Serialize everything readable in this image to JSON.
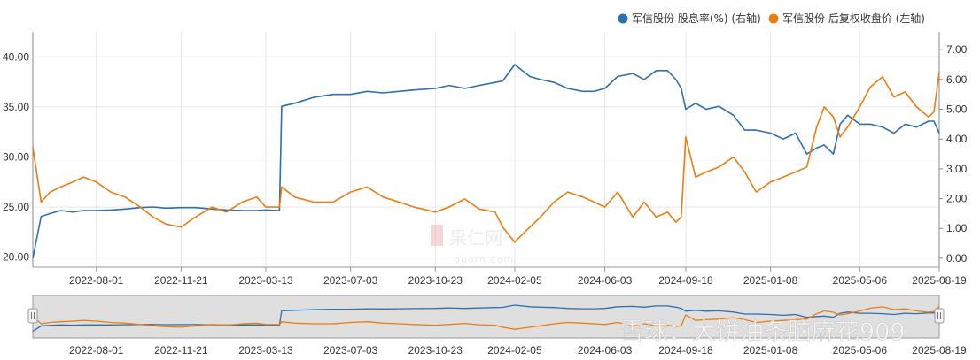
{
  "chart_data": {
    "type": "line",
    "x_dates": [
      "2022-05-09",
      "2022-05-20",
      "2022-06-01",
      "2022-06-15",
      "2022-07-01",
      "2022-07-15",
      "2022-08-01",
      "2022-08-20",
      "2022-09-08",
      "2022-09-28",
      "2022-10-15",
      "2022-11-01",
      "2022-11-21",
      "2022-12-10",
      "2023-01-01",
      "2023-01-20",
      "2023-02-10",
      "2023-03-01",
      "2023-03-13",
      "2023-03-31",
      "2023-04-03",
      "2023-04-20",
      "2023-05-15",
      "2023-06-10",
      "2023-07-03",
      "2023-07-25",
      "2023-08-15",
      "2023-09-05",
      "2023-09-25",
      "2023-10-23",
      "2023-11-10",
      "2023-12-01",
      "2023-12-20",
      "2024-01-10",
      "2024-01-20",
      "2024-02-05",
      "2024-02-25",
      "2024-03-10",
      "2024-03-28",
      "2024-04-15",
      "2024-05-05",
      "2024-05-20",
      "2024-06-03",
      "2024-06-20",
      "2024-07-10",
      "2024-07-25",
      "2024-08-10",
      "2024-08-25",
      "2024-09-05",
      "2024-09-12",
      "2024-09-18",
      "2024-10-01",
      "2024-10-15",
      "2024-11-01",
      "2024-11-20",
      "2024-12-05",
      "2024-12-20",
      "2025-01-08",
      "2025-01-25",
      "2025-02-10",
      "2025-02-25",
      "2025-03-10",
      "2025-03-20",
      "2025-04-01",
      "2025-04-10",
      "2025-04-20",
      "2025-05-06",
      "2025-05-20",
      "2025-06-05",
      "2025-06-20",
      "2025-07-05",
      "2025-07-20",
      "2025-08-05",
      "2025-08-12",
      "2025-08-19"
    ],
    "series": [
      {
        "name": "军信股份 股息率(%) (右轴)",
        "axis": "right",
        "color": "#2e6fad",
        "values": [
          0.0,
          1.4,
          1.5,
          1.6,
          1.55,
          1.6,
          1.6,
          1.62,
          1.65,
          1.7,
          1.72,
          1.68,
          1.7,
          1.7,
          1.65,
          1.62,
          1.6,
          1.6,
          1.62,
          1.6,
          5.1,
          5.2,
          5.4,
          5.5,
          5.5,
          5.6,
          5.55,
          5.6,
          5.65,
          5.7,
          5.8,
          5.7,
          5.8,
          5.9,
          5.95,
          6.5,
          6.1,
          6.0,
          5.9,
          5.7,
          5.6,
          5.6,
          5.7,
          6.1,
          6.2,
          6.0,
          6.3,
          6.3,
          6.0,
          5.7,
          5.0,
          5.2,
          5.0,
          5.1,
          4.8,
          4.3,
          4.3,
          4.2,
          4.0,
          4.2,
          3.5,
          3.7,
          3.8,
          3.5,
          4.5,
          4.8,
          4.5,
          4.5,
          4.4,
          4.2,
          4.5,
          4.4,
          4.6,
          4.6,
          4.2
        ]
      },
      {
        "name": "军信股份 后复权收盘价 (左轴)",
        "axis": "left",
        "color": "#ec7d11",
        "values": [
          31.0,
          25.5,
          26.5,
          27.0,
          27.5,
          28.0,
          27.5,
          26.5,
          26.0,
          25.0,
          24.0,
          23.3,
          23.0,
          24.0,
          25.0,
          24.5,
          25.5,
          26.0,
          25.0,
          25.0,
          27.0,
          26.0,
          25.5,
          25.5,
          26.5,
          27.0,
          26.0,
          25.5,
          25.0,
          24.5,
          25.0,
          25.8,
          24.8,
          24.5,
          23.0,
          21.5,
          23.0,
          24.0,
          25.5,
          26.5,
          26.0,
          25.5,
          25.0,
          26.5,
          24.0,
          25.5,
          24.0,
          24.5,
          23.5,
          24.0,
          32.0,
          28.0,
          28.5,
          29.0,
          30.0,
          28.5,
          26.5,
          27.5,
          28.0,
          28.5,
          29.0,
          33.0,
          35.0,
          34.0,
          32.0,
          33.0,
          35.0,
          37.0,
          38.0,
          36.0,
          36.5,
          35.0,
          34.0,
          34.5,
          38.5
        ]
      }
    ],
    "legend": [
      "军信股份 股息率(%) (右轴)",
      "军信股份 后复权收盘价 (左轴)"
    ],
    "legend_position": "top-right",
    "left_axis": {
      "ticks": [
        "20.00",
        "25.00",
        "30.00",
        "35.00",
        "40.00"
      ],
      "range": [
        19.0,
        42.5
      ]
    },
    "right_axis": {
      "ticks": [
        "0.00",
        "1.00",
        "2.00",
        "3.00",
        "4.00",
        "5.00",
        "6.00",
        "7.00"
      ],
      "range": [
        -0.3,
        7.6
      ]
    },
    "x_tick_labels": [
      "2022-08-01",
      "2022-11-21",
      "2023-03-13",
      "2023-07-03",
      "2023-10-23",
      "2024-02-05",
      "2024-06-03",
      "2024-09-18",
      "2025-01-08",
      "2025-05-06",
      "2025-08-19"
    ],
    "grid": true
  },
  "watermarks": {
    "center_main": "果仁网",
    "center_sub": "guorn.com",
    "bottom_right": "雪球：大饼油条脑麻花909"
  }
}
